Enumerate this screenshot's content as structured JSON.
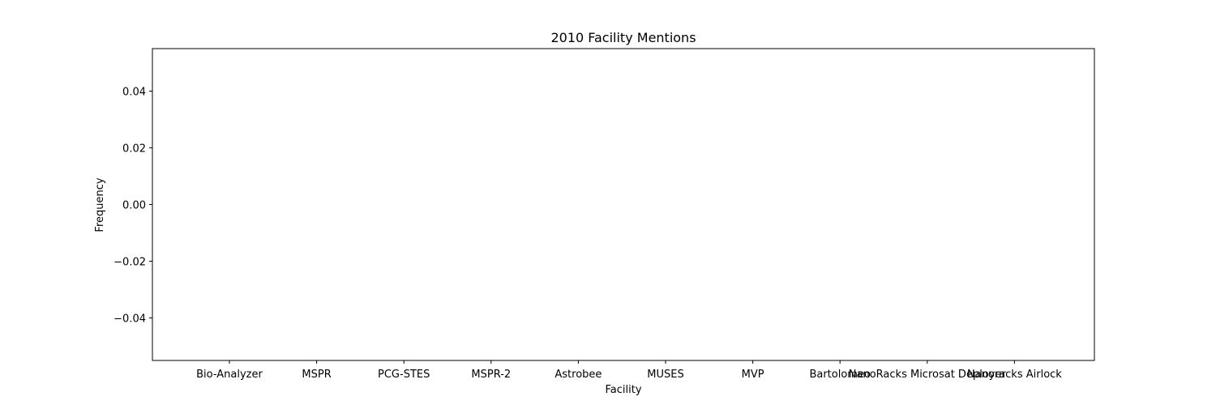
{
  "chart_data": {
    "type": "bar",
    "title": "2010 Facility Mentions",
    "xlabel": "Facility",
    "ylabel": "Frequency",
    "categories": [
      "Bio-Analyzer",
      "MSPR",
      "PCG-STES",
      "MSPR-2",
      "Astrobee",
      "MUSES",
      "MVP",
      "Bartolomeo",
      "NanoRacks Microsat Deployer",
      "Nanoracks Airlock"
    ],
    "values": [
      0,
      0,
      0,
      0,
      0,
      0,
      0,
      0,
      0,
      0
    ],
    "ylim": [
      -0.055,
      0.055
    ],
    "yticks": [
      -0.04,
      -0.02,
      0.0,
      0.02,
      0.04
    ],
    "ytick_labels": [
      "−0.04",
      "−0.02",
      "0.00",
      "0.02",
      "0.04"
    ],
    "grid": false,
    "colors": {
      "bar": "#1f77b4",
      "axis": "#000000"
    }
  }
}
